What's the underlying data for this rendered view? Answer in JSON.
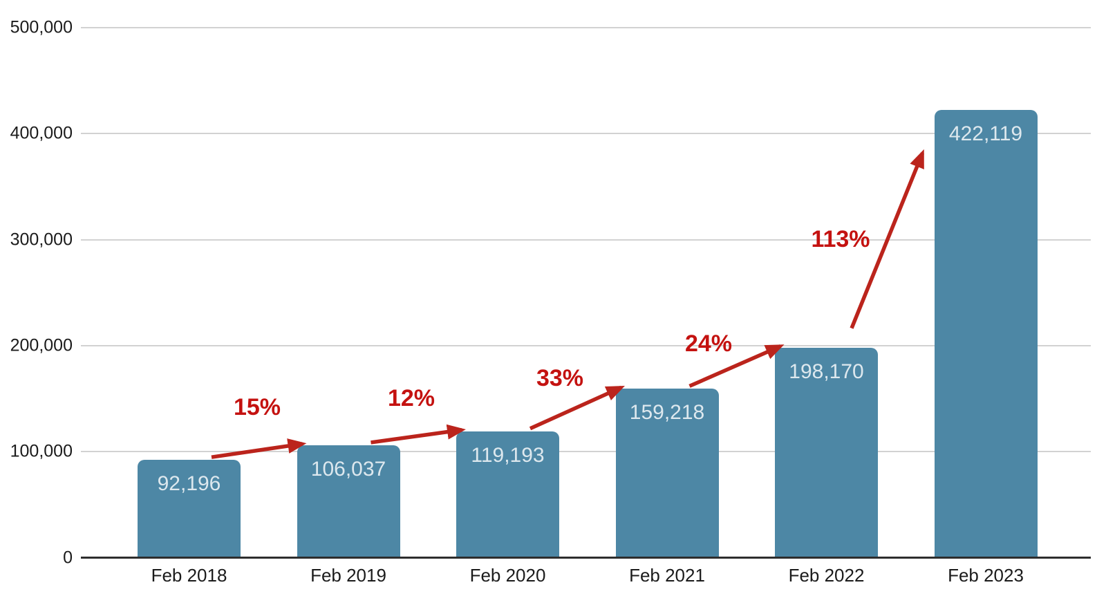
{
  "chart_data": {
    "type": "bar",
    "title": "",
    "xlabel": "",
    "ylabel": "",
    "categories": [
      "Feb 2018",
      "Feb 2019",
      "Feb 2020",
      "Feb 2021",
      "Feb 2022",
      "Feb 2023"
    ],
    "values": [
      92196,
      106037,
      119193,
      159218,
      198170,
      422119
    ],
    "value_labels": [
      "92,196",
      "106,037",
      "119,193",
      "159,218",
      "198,170",
      "422,119"
    ],
    "growth_annotations": [
      {
        "from": "Feb 2018",
        "to": "Feb 2019",
        "label": "15%"
      },
      {
        "from": "Feb 2019",
        "to": "Feb 2020",
        "label": "12%"
      },
      {
        "from": "Feb 2020",
        "to": "Feb 2021",
        "label": "33%"
      },
      {
        "from": "Feb 2021",
        "to": "Feb 2022",
        "label": "24%"
      },
      {
        "from": "Feb 2022",
        "to": "Feb 2023",
        "label": "113%"
      }
    ],
    "y_ticks": [
      "500,000",
      "400,000",
      "300,000",
      "200,000",
      "100,000",
      "0"
    ],
    "y_tick_values": [
      500000,
      400000,
      300000,
      200000,
      100000,
      0
    ],
    "ylim": [
      0,
      500000
    ],
    "grid": true,
    "legend": "none",
    "colors": {
      "bar_fill": "#4d87a5",
      "bar_value_text": "#dde8ee",
      "percent_text": "#c41210",
      "arrow": "#bb241c",
      "gridline": "#d2d2d2",
      "axis_line": "#2d2d2d",
      "tick_text": "#1b1b1b"
    }
  }
}
